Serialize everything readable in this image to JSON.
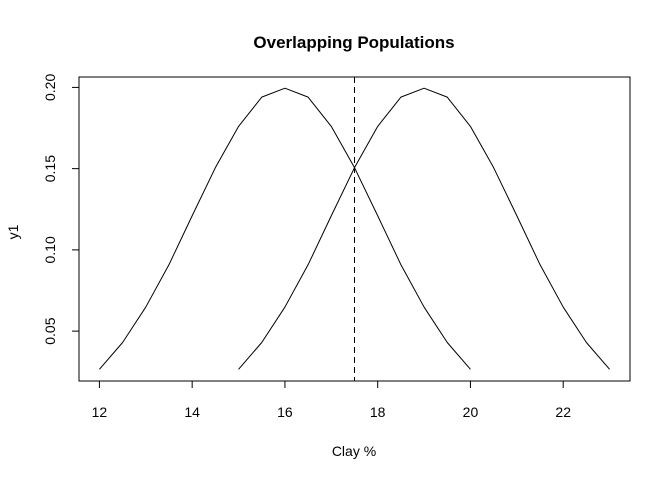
{
  "chart_data": {
    "type": "line",
    "title": "Overlapping Populations",
    "xlabel": "Clay %",
    "ylabel": "y1",
    "xlim": [
      11.56,
      23.44
    ],
    "ylim": [
      0.0193,
      0.2064
    ],
    "xticks": [
      12,
      14,
      16,
      18,
      20,
      22
    ],
    "yticks": [
      0.05,
      0.1,
      0.15,
      0.2
    ],
    "xtick_labels": [
      "12",
      "14",
      "16",
      "18",
      "20",
      "22"
    ],
    "ytick_labels": [
      "0.05",
      "0.10",
      "0.15",
      "0.20"
    ],
    "grid": false,
    "series": [
      {
        "x": [
          12.0,
          12.5,
          13.0,
          13.5,
          14.0,
          14.5,
          15.0,
          15.5,
          16.0,
          16.5,
          17.0,
          17.5,
          18.0,
          18.5,
          19.0,
          19.5,
          20.0
        ],
        "values": [
          0.0265,
          0.043,
          0.0648,
          0.0909,
          0.121,
          0.1506,
          0.176,
          0.194,
          0.1995,
          0.194,
          0.176,
          0.1506,
          0.121,
          0.0909,
          0.0648,
          0.043,
          0.0265
        ],
        "color": "#000000",
        "style": "solid"
      },
      {
        "x": [
          15.0,
          15.5,
          16.0,
          16.5,
          17.0,
          17.5,
          18.0,
          18.5,
          19.0,
          19.5,
          20.0,
          20.5,
          21.0,
          21.5,
          22.0,
          22.5,
          23.0
        ],
        "values": [
          0.0265,
          0.043,
          0.0648,
          0.0909,
          0.121,
          0.1506,
          0.176,
          0.194,
          0.1995,
          0.194,
          0.176,
          0.1506,
          0.121,
          0.0909,
          0.0648,
          0.043,
          0.0265
        ],
        "color": "#000000",
        "style": "solid"
      }
    ],
    "vline": {
      "x": 17.5,
      "style": "dashed",
      "color": "#000000"
    }
  }
}
